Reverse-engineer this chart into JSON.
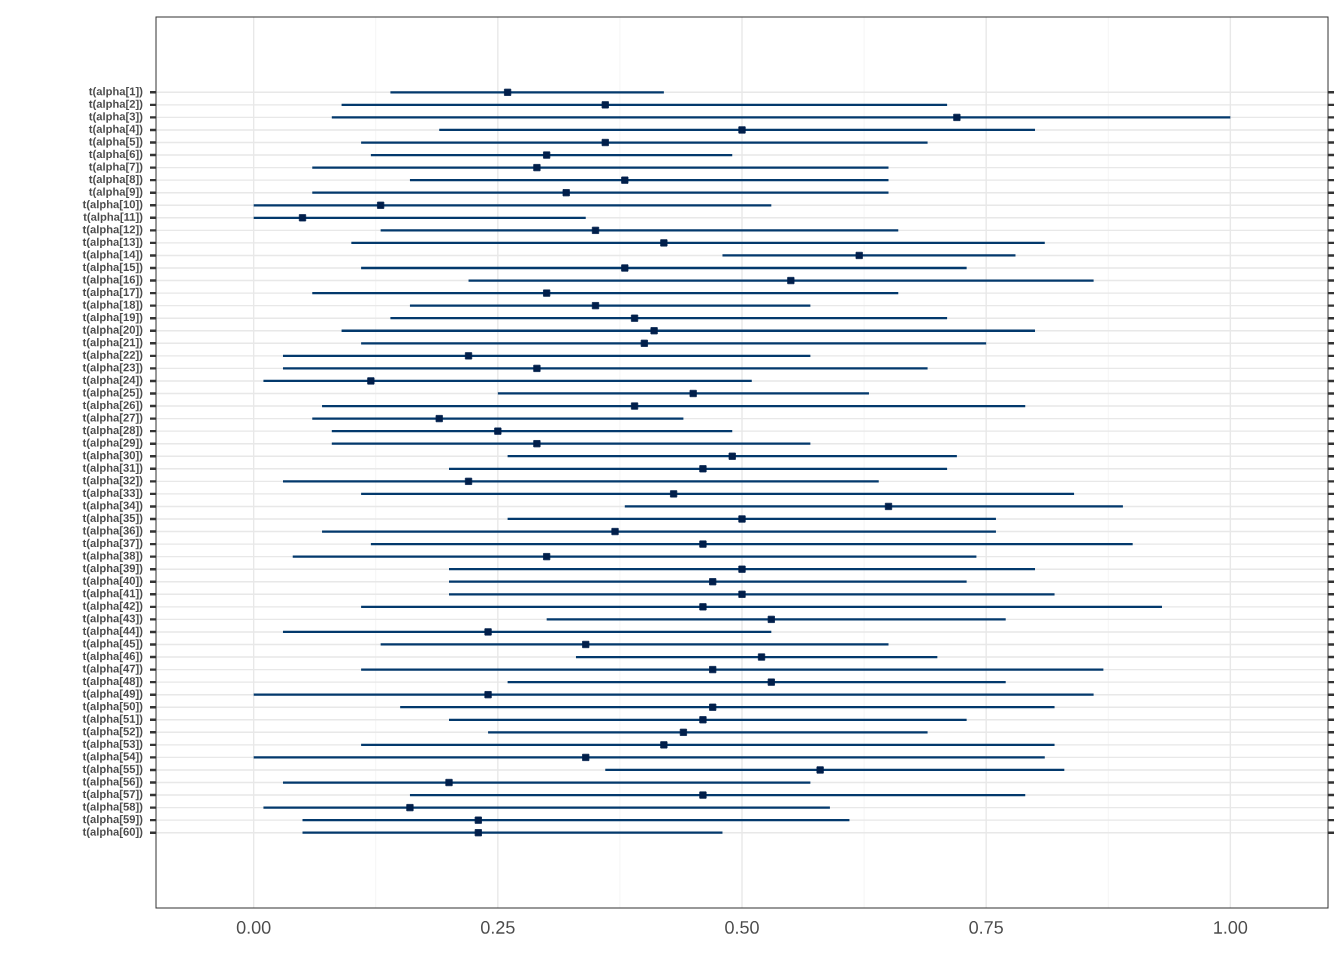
{
  "chart_data": {
    "type": "bar",
    "orientation": "horizontal",
    "grid": true,
    "marker": "square",
    "categories": [
      "t(alpha[1])",
      "t(alpha[2])",
      "t(alpha[3])",
      "t(alpha[4])",
      "t(alpha[5])",
      "t(alpha[6])",
      "t(alpha[7])",
      "t(alpha[8])",
      "t(alpha[9])",
      "t(alpha[10])",
      "t(alpha[11])",
      "t(alpha[12])",
      "t(alpha[13])",
      "t(alpha[14])",
      "t(alpha[15])",
      "t(alpha[16])",
      "t(alpha[17])",
      "t(alpha[18])",
      "t(alpha[19])",
      "t(alpha[20])",
      "t(alpha[21])",
      "t(alpha[22])",
      "t(alpha[23])",
      "t(alpha[24])",
      "t(alpha[25])",
      "t(alpha[26])",
      "t(alpha[27])",
      "t(alpha[28])",
      "t(alpha[29])",
      "t(alpha[30])",
      "t(alpha[31])",
      "t(alpha[32])",
      "t(alpha[33])",
      "t(alpha[34])",
      "t(alpha[35])",
      "t(alpha[36])",
      "t(alpha[37])",
      "t(alpha[38])",
      "t(alpha[39])",
      "t(alpha[40])",
      "t(alpha[41])",
      "t(alpha[42])",
      "t(alpha[43])",
      "t(alpha[44])",
      "t(alpha[45])",
      "t(alpha[46])",
      "t(alpha[47])",
      "t(alpha[48])",
      "t(alpha[49])",
      "t(alpha[50])",
      "t(alpha[51])",
      "t(alpha[52])",
      "t(alpha[53])",
      "t(alpha[54])",
      "t(alpha[55])",
      "t(alpha[56])",
      "t(alpha[57])",
      "t(alpha[58])",
      "t(alpha[59])",
      "t(alpha[60])"
    ],
    "xlim": [
      -0.1,
      1.1
    ],
    "xticks": [
      {
        "value": 0,
        "label": "0.00"
      },
      0.25,
      {
        "value": 0.5,
        "label": "0.50"
      },
      0.75,
      {
        "value": 1,
        "label": "1.00"
      }
    ],
    "series": [
      {
        "color": "#03396c",
        "base": [
          0.14,
          0.09,
          0.08,
          0.19,
          0.11,
          0.12,
          0.06,
          0.16,
          0.06,
          0.0,
          0.0,
          0.13,
          0.1,
          0.48,
          0.11,
          0.22,
          0.06,
          0.16,
          0.14,
          0.09,
          0.11,
          0.03,
          0.03,
          0.01,
          0.25,
          0.07,
          0.06,
          0.08,
          0.08,
          0.26,
          0.2,
          0.03,
          0.11,
          0.38,
          0.26,
          0.07,
          0.12,
          0.04,
          0.2,
          0.2,
          0.2,
          0.11,
          0.3,
          0.03,
          0.13,
          0.33,
          0.11,
          0.26,
          0.0,
          0.15,
          0.2,
          0.24,
          0.11,
          0.0,
          0.36,
          0.03,
          0.16,
          0.01,
          0.05,
          0.05
        ],
        "values": [
          0.28,
          0.62,
          0.92,
          0.61,
          0.58,
          0.37,
          0.59,
          0.49,
          0.59,
          0.53,
          0.34,
          0.53,
          0.71,
          0.3,
          0.62,
          0.64,
          0.6,
          0.41,
          0.57,
          0.71,
          0.64,
          0.54,
          0.66,
          0.5,
          0.38,
          0.72,
          0.38,
          0.41,
          0.49,
          0.46,
          0.51,
          0.61,
          0.73,
          0.51,
          0.5,
          0.69,
          0.78,
          0.7,
          0.6,
          0.53,
          0.62,
          0.82,
          0.47,
          0.5,
          0.52,
          0.37,
          0.76,
          0.51,
          0.86,
          0.67,
          0.53,
          0.45,
          0.71,
          0.81,
          0.47,
          0.54,
          0.63,
          0.58,
          0.56,
          0.43
        ]
      },
      {
        "type": "scatter",
        "color": "#011f4b",
        "values": [
          0.26,
          0.36,
          0.72,
          0.5,
          0.36,
          0.3,
          0.29,
          0.38,
          0.32,
          0.13,
          0.05,
          0.35,
          0.42,
          0.62,
          0.38,
          0.55,
          0.3,
          0.35,
          0.39,
          0.41,
          0.4,
          0.22,
          0.29,
          0.12,
          0.45,
          0.39,
          0.19,
          0.25,
          0.29,
          0.49,
          0.46,
          0.22,
          0.43,
          0.65,
          0.5,
          0.37,
          0.46,
          0.3,
          0.5,
          0.47,
          0.5,
          0.46,
          0.53,
          0.24,
          0.34,
          0.52,
          0.47,
          0.53,
          0.24,
          0.47,
          0.46,
          0.44,
          0.42,
          0.34,
          0.58,
          0.2,
          0.46,
          0.16,
          0.23,
          0.23
        ]
      }
    ]
  }
}
